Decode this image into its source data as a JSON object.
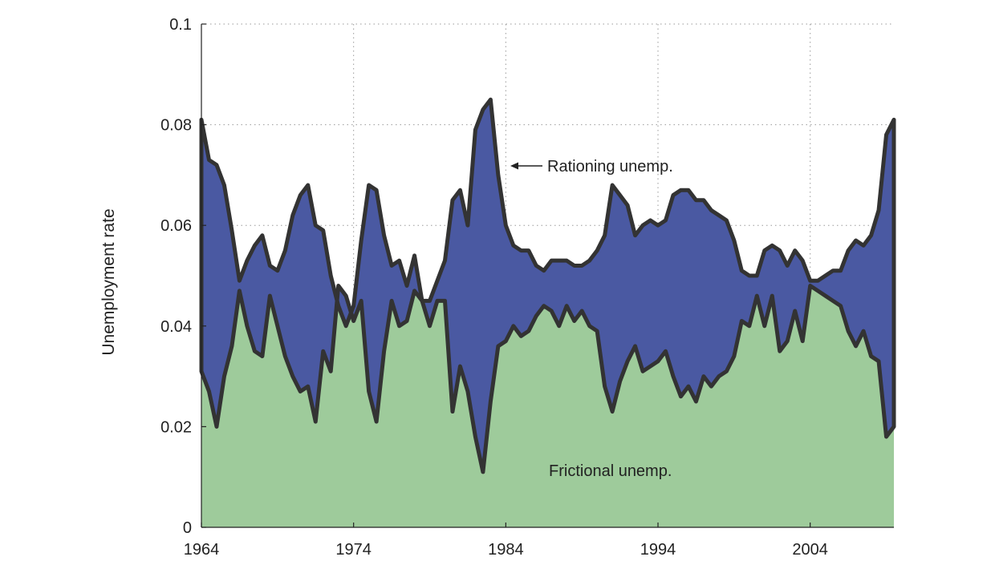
{
  "chart_data": {
    "type": "area",
    "title": "",
    "xlabel": "",
    "ylabel": "Unemployment rate",
    "xlim": [
      1964,
      2009.5
    ],
    "ylim": [
      0,
      0.1
    ],
    "xticks": [
      1964,
      1974,
      1984,
      1994,
      2004
    ],
    "xtick_labels": [
      "1964",
      "1974",
      "1984",
      "1994",
      "2004"
    ],
    "yticks": [
      0,
      0.02,
      0.04,
      0.06,
      0.08,
      0.1
    ],
    "ytick_labels": [
      "0",
      "0.02",
      "0.04",
      "0.06",
      "0.08",
      "0.1"
    ],
    "grid": true,
    "annotations": {
      "rationing": "Rationing unemp.",
      "frictional": "Frictional unemp."
    },
    "colors": {
      "frictional": "#9ecb9b",
      "rationing": "#4a59a2",
      "line": "#333333"
    },
    "x": [
      1964.0,
      1964.5,
      1965.0,
      1965.5,
      1966.0,
      1966.5,
      1967.0,
      1967.5,
      1968.0,
      1968.5,
      1969.0,
      1969.5,
      1970.0,
      1970.5,
      1971.0,
      1971.5,
      1972.0,
      1972.5,
      1973.0,
      1973.5,
      1974.0,
      1974.5,
      1975.0,
      1975.5,
      1976.0,
      1976.5,
      1977.0,
      1977.5,
      1978.0,
      1978.5,
      1979.0,
      1979.5,
      1980.0,
      1980.5,
      1981.0,
      1981.5,
      1982.0,
      1982.5,
      1983.0,
      1983.5,
      1984.0,
      1984.5,
      1985.0,
      1985.5,
      1986.0,
      1986.5,
      1987.0,
      1987.5,
      1988.0,
      1988.5,
      1989.0,
      1989.5,
      1990.0,
      1990.5,
      1991.0,
      1991.5,
      1992.0,
      1992.5,
      1993.0,
      1993.5,
      1994.0,
      1994.5,
      1995.0,
      1995.5,
      1996.0,
      1996.5,
      1997.0,
      1997.5,
      1998.0,
      1998.5,
      1999.0,
      1999.5,
      2000.0,
      2000.5,
      2001.0,
      2001.5,
      2002.0,
      2002.5,
      2003.0,
      2003.5,
      2004.0,
      2004.5,
      2005.0,
      2005.5,
      2006.0,
      2006.5,
      2007.0,
      2007.5,
      2008.0,
      2008.5,
      2009.0,
      2009.5
    ],
    "series": [
      {
        "name": "Frictional unemp.",
        "values": [
          0.031,
          0.027,
          0.02,
          0.03,
          0.036,
          0.047,
          0.04,
          0.035,
          0.034,
          0.046,
          0.04,
          0.034,
          0.03,
          0.027,
          0.028,
          0.021,
          0.035,
          0.031,
          0.048,
          0.046,
          0.041,
          0.045,
          0.027,
          0.021,
          0.035,
          0.045,
          0.04,
          0.041,
          0.047,
          0.045,
          0.04,
          0.045,
          0.045,
          0.023,
          0.032,
          0.027,
          0.018,
          0.011,
          0.025,
          0.036,
          0.037,
          0.04,
          0.038,
          0.039,
          0.042,
          0.044,
          0.043,
          0.04,
          0.044,
          0.041,
          0.043,
          0.04,
          0.039,
          0.028,
          0.023,
          0.029,
          0.033,
          0.036,
          0.031,
          0.032,
          0.033,
          0.035,
          0.03,
          0.026,
          0.028,
          0.025,
          0.03,
          0.028,
          0.03,
          0.031,
          0.034,
          0.041,
          0.04,
          0.046,
          0.04,
          0.046,
          0.035,
          0.037,
          0.043,
          0.037,
          0.048,
          0.047,
          0.046,
          0.045,
          0.044,
          0.039,
          0.036,
          0.039,
          0.034,
          0.033,
          0.018,
          0.02
        ]
      },
      {
        "name": "Rationing unemp.",
        "values": [
          0.081,
          0.073,
          0.072,
          0.068,
          0.059,
          0.049,
          0.053,
          0.056,
          0.058,
          0.052,
          0.051,
          0.055,
          0.062,
          0.066,
          0.068,
          0.06,
          0.059,
          0.05,
          0.044,
          0.04,
          0.044,
          0.057,
          0.068,
          0.067,
          0.058,
          0.052,
          0.053,
          0.048,
          0.054,
          0.045,
          0.045,
          0.049,
          0.053,
          0.065,
          0.067,
          0.06,
          0.079,
          0.083,
          0.085,
          0.07,
          0.06,
          0.056,
          0.055,
          0.055,
          0.052,
          0.051,
          0.053,
          0.053,
          0.053,
          0.052,
          0.052,
          0.053,
          0.055,
          0.058,
          0.068,
          0.066,
          0.064,
          0.058,
          0.06,
          0.061,
          0.06,
          0.061,
          0.066,
          0.067,
          0.067,
          0.065,
          0.065,
          0.063,
          0.062,
          0.061,
          0.057,
          0.051,
          0.05,
          0.05,
          0.055,
          0.056,
          0.055,
          0.052,
          0.055,
          0.053,
          0.049,
          0.049,
          0.05,
          0.051,
          0.051,
          0.055,
          0.057,
          0.056,
          0.058,
          0.063,
          0.078,
          0.081
        ]
      }
    ]
  }
}
